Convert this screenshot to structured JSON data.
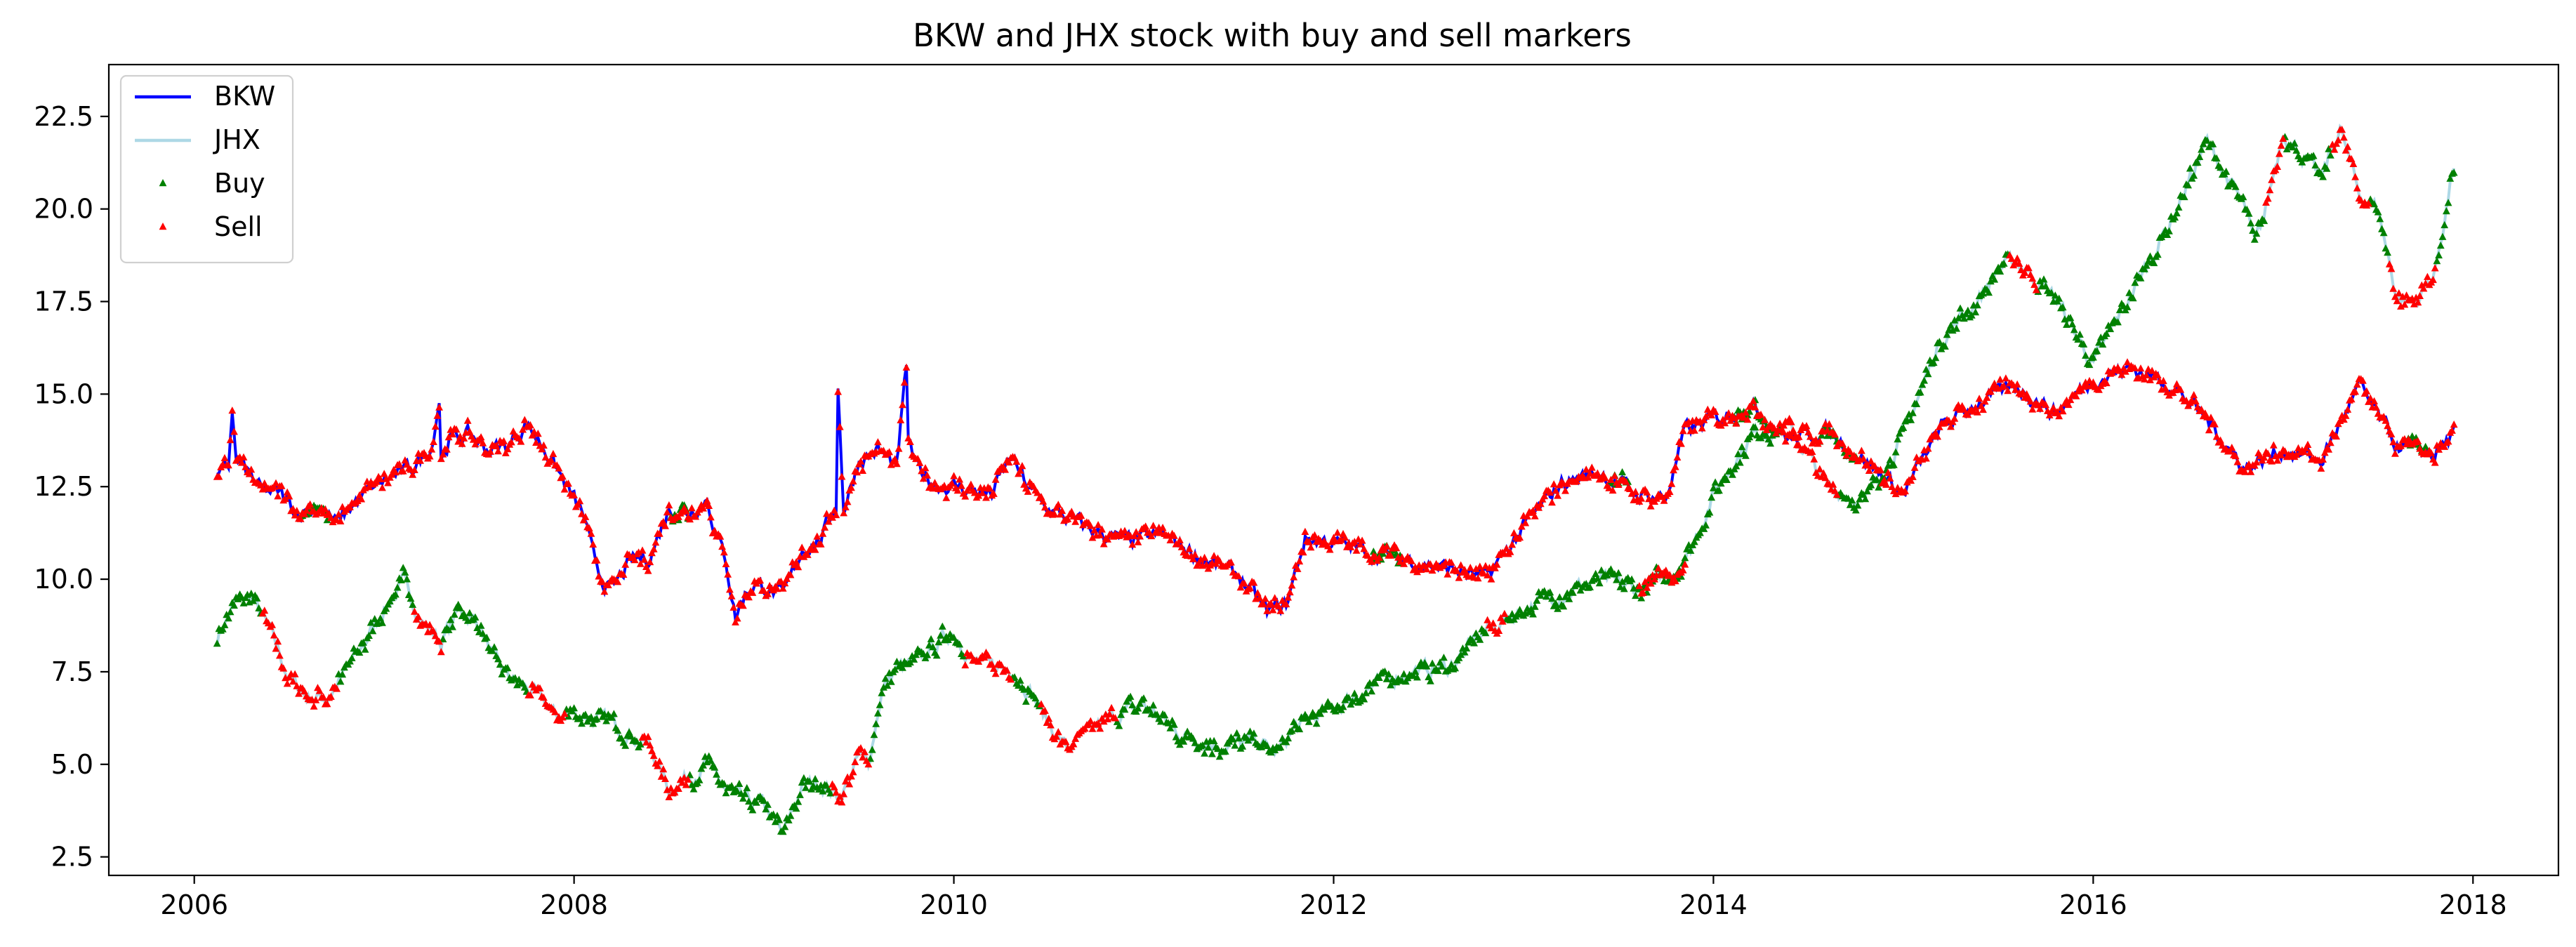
{
  "chart_data": {
    "type": "line",
    "title": "BKW and JHX stock with buy and sell markers",
    "xlabel": "",
    "ylabel": "",
    "x_ticks": [
      "2006",
      "2008",
      "2010",
      "2012",
      "2014",
      "2016",
      "2018"
    ],
    "y_ticks": [
      "2.5",
      "5.0",
      "7.5",
      "10.0",
      "12.5",
      "15.0",
      "17.5",
      "20.0",
      "22.5"
    ],
    "xlim": [
      2005.55,
      2018.45
    ],
    "ylim": [
      2.0,
      23.9
    ],
    "grid": false,
    "legend_position": "upper-left",
    "legend": [
      "BKW",
      "JHX",
      "Buy",
      "Sell"
    ],
    "colors": {
      "bkw": "#0000ff",
      "jhx": "#add8e6",
      "buy": "#008000",
      "sell": "#ff0000"
    },
    "series": [
      {
        "name": "BKW",
        "x": [
          2006.12,
          2006.18,
          2006.2,
          2006.22,
          2006.28,
          2006.35,
          2006.45,
          2006.55,
          2006.65,
          2006.75,
          2006.85,
          2006.95,
          2007.05,
          2007.15,
          2007.25,
          2007.29,
          2007.3,
          2007.35,
          2007.45,
          2007.55,
          2007.65,
          2007.75,
          2007.85,
          2007.95,
          2008.05,
          2008.1,
          2008.15,
          2008.2,
          2008.3,
          2008.4,
          2008.5,
          2008.6,
          2008.7,
          2008.75,
          2008.8,
          2008.85,
          2008.9,
          2008.95,
          2009.0,
          2009.1,
          2009.2,
          2009.3,
          2009.38,
          2009.39,
          2009.42,
          2009.5,
          2009.6,
          2009.7,
          2009.75,
          2009.76,
          2009.8,
          2009.9,
          2010.0,
          2010.2,
          2010.3,
          2010.4,
          2010.5,
          2010.7,
          2010.9,
          2011.1,
          2011.3,
          2011.5,
          2011.65,
          2011.75,
          2011.85,
          2012.0,
          2012.3,
          2012.6,
          2012.8,
          2013.0,
          2013.2,
          2013.4,
          2013.6,
          2013.75,
          2013.85,
          2014.0,
          2014.2,
          2014.4,
          2014.6,
          2014.8,
          2015.0,
          2015.2,
          2015.4,
          2015.6,
          2015.8,
          2016.0,
          2016.2,
          2016.4,
          2016.6,
          2016.8,
          2017.0,
          2017.2,
          2017.4,
          2017.6,
          2017.8,
          2017.9
        ],
        "y": [
          12.7,
          13.0,
          14.6,
          13.2,
          12.9,
          12.4,
          12.3,
          11.8,
          12.0,
          11.5,
          12.1,
          12.5,
          12.8,
          13.0,
          13.6,
          14.9,
          13.3,
          13.8,
          13.9,
          13.5,
          13.6,
          14.2,
          13.5,
          12.6,
          11.7,
          10.6,
          10.0,
          9.7,
          10.5,
          10.6,
          11.9,
          11.8,
          12.2,
          11.2,
          10.5,
          9.0,
          9.6,
          9.9,
          9.8,
          9.5,
          10.8,
          11.1,
          12.0,
          15.2,
          11.9,
          13.2,
          13.5,
          13.0,
          15.7,
          13.8,
          13.0,
          12.6,
          12.5,
          12.3,
          13.3,
          12.4,
          11.9,
          11.4,
          11.0,
          11.2,
          10.6,
          10.1,
          9.1,
          9.3,
          11.1,
          11.0,
          10.6,
          10.3,
          10.0,
          11.4,
          12.6,
          12.9,
          12.3,
          12.2,
          14.0,
          14.3,
          14.7,
          13.8,
          14.0,
          13.2,
          12.3,
          14.1,
          14.8,
          15.2,
          14.5,
          15.4,
          15.7,
          15.3,
          14.3,
          13.0,
          13.5,
          13.2,
          15.2,
          13.6,
          13.4,
          13.9
        ]
      },
      {
        "name": "JHX",
        "x": [
          2006.12,
          2006.22,
          2006.3,
          2006.4,
          2006.5,
          2006.6,
          2006.7,
          2006.8,
          2006.9,
          2007.0,
          2007.1,
          2007.2,
          2007.3,
          2007.4,
          2007.5,
          2007.6,
          2007.7,
          2007.8,
          2007.9,
          2008.0,
          2008.2,
          2008.4,
          2008.5,
          2008.7,
          2008.8,
          2008.9,
          2009.0,
          2009.1,
          2009.2,
          2009.3,
          2009.4,
          2009.5,
          2009.55,
          2009.62,
          2009.7,
          2009.8,
          2009.9,
          2010.0,
          2010.1,
          2010.2,
          2010.3,
          2010.4,
          2010.5,
          2010.6,
          2010.8,
          2011.0,
          2011.2,
          2011.4,
          2011.6,
          2011.7,
          2011.8,
          2012.0,
          2012.2,
          2012.4,
          2012.6,
          2012.8,
          2013.0,
          2013.2,
          2013.4,
          2013.6,
          2013.8,
          2013.85,
          2013.88,
          2014.0,
          2014.2,
          2014.4,
          2014.6,
          2014.8,
          2015.0,
          2015.2,
          2015.4,
          2015.5,
          2015.6,
          2015.8,
          2016.0,
          2016.2,
          2016.4,
          2016.6,
          2016.8,
          2016.85,
          2016.9,
          2017.0,
          2017.2,
          2017.3,
          2017.4,
          2017.5,
          2017.6,
          2017.7,
          2017.8,
          2017.9
        ],
        "y": [
          8.4,
          9.4,
          9.5,
          8.6,
          7.3,
          6.8,
          6.8,
          7.5,
          8.3,
          9.2,
          9.9,
          8.9,
          8.3,
          9.2,
          8.8,
          7.6,
          7.2,
          6.9,
          6.3,
          6.4,
          6.1,
          5.5,
          4.3,
          5.0,
          4.3,
          4.0,
          3.9,
          3.1,
          4.4,
          4.5,
          4.1,
          5.2,
          5.0,
          7.0,
          7.6,
          7.7,
          8.2,
          8.6,
          7.8,
          7.6,
          7.6,
          7.0,
          6.1,
          5.4,
          6.2,
          6.6,
          5.8,
          5.5,
          5.6,
          5.3,
          6.0,
          6.5,
          7.1,
          7.5,
          7.6,
          8.6,
          9.2,
          9.6,
          10.0,
          9.7,
          10.2,
          10.6,
          10.8,
          12.3,
          13.9,
          14.1,
          12.5,
          12.1,
          13.9,
          16.5,
          17.6,
          18.4,
          18.6,
          17.6,
          15.8,
          17.7,
          19.6,
          21.8,
          20.0,
          19.0,
          19.8,
          22.1,
          20.8,
          22.2,
          20.4,
          20.0,
          17.6,
          17.5,
          18.3,
          21.2
        ]
      }
    ],
    "markers": [
      {
        "name": "Buy",
        "marker": "triangle-up",
        "on_series": "JHX",
        "x_ranges": [
          [
            2006.12,
            2006.35
          ],
          [
            2006.75,
            2007.15
          ],
          [
            2007.3,
            2007.75
          ],
          [
            2007.95,
            2008.35
          ],
          [
            2008.6,
            2009.35
          ],
          [
            2009.55,
            2010.05
          ],
          [
            2010.3,
            2010.45
          ],
          [
            2010.85,
            2012.8
          ],
          [
            2012.9,
            2014.35
          ],
          [
            2014.65,
            2015.55
          ],
          [
            2015.7,
            2016.9
          ],
          [
            2017.0,
            2017.25
          ],
          [
            2017.45,
            2017.55
          ],
          [
            2017.8,
            2017.95
          ]
        ]
      },
      {
        "name": "Buy",
        "marker": "triangle-up",
        "on_series": "BKW",
        "x_ranges": [
          [
            2006.55,
            2006.7
          ],
          [
            2008.5,
            2008.6
          ],
          [
            2012.2,
            2012.35
          ],
          [
            2013.45,
            2013.55
          ],
          [
            2014.1,
            2014.3
          ],
          [
            2014.55,
            2014.75
          ],
          [
            2017.65,
            2017.75
          ]
        ]
      },
      {
        "name": "Sell",
        "marker": "triangle-up",
        "on_series": "BKW",
        "x_ranges": [
          [
            2006.12,
            2017.95
          ]
        ]
      },
      {
        "name": "Sell",
        "marker": "triangle-up",
        "on_series": "JHX",
        "x_ranges": [
          [
            2006.35,
            2006.75
          ],
          [
            2007.15,
            2007.3
          ],
          [
            2007.75,
            2007.95
          ],
          [
            2008.35,
            2008.6
          ],
          [
            2009.35,
            2009.55
          ],
          [
            2010.05,
            2010.3
          ],
          [
            2010.45,
            2010.85
          ],
          [
            2012.8,
            2012.9
          ],
          [
            2013.6,
            2013.85
          ],
          [
            2014.35,
            2014.65
          ],
          [
            2015.55,
            2015.7
          ],
          [
            2016.9,
            2017.0
          ],
          [
            2017.25,
            2017.45
          ],
          [
            2017.55,
            2017.8
          ]
        ]
      }
    ]
  }
}
